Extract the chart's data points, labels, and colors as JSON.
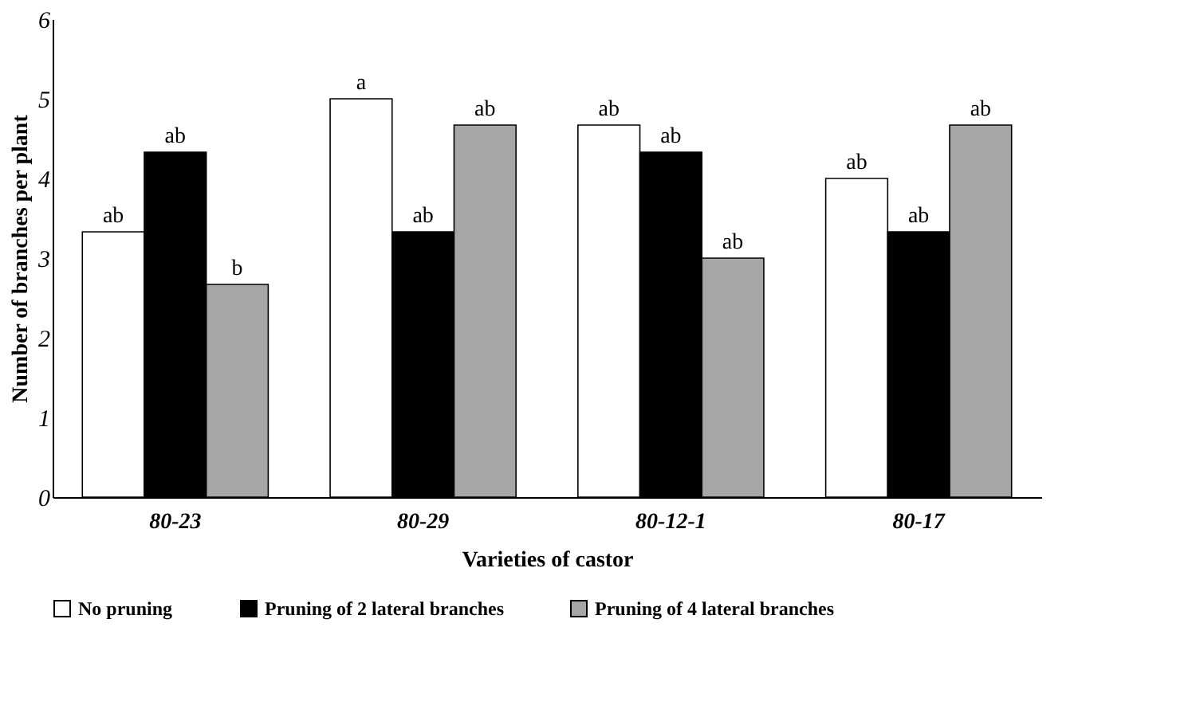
{
  "chart_data": {
    "type": "bar",
    "xlabel": "Varieties of castor",
    "ylabel": "Number of branches per plant",
    "categories": [
      "80-23",
      "80-29",
      "80-12-1",
      "80-17"
    ],
    "series": [
      {
        "name": "No pruning",
        "color": "#ffffff",
        "values": [
          3.33,
          5,
          4.67,
          4
        ],
        "value_labels": [
          "ab",
          "a",
          "ab",
          "ab"
        ]
      },
      {
        "name": "Pruning of 2 lateral branches",
        "color": "#000000",
        "values": [
          4.33,
          3.33,
          4.33,
          3.33
        ],
        "value_labels": [
          "ab",
          "ab",
          "ab",
          "ab"
        ]
      },
      {
        "name": "Pruning of 4 lateral branches",
        "color": "#a6a6a6",
        "values": [
          2.67,
          4.67,
          3,
          4.67
        ],
        "value_labels": [
          "b",
          "ab",
          "ab",
          "ab"
        ]
      }
    ],
    "ylim": [
      0,
      6
    ],
    "yticks": [
      0,
      1,
      2,
      3,
      4,
      5,
      6
    ],
    "grid": false,
    "legend": "bottom"
  }
}
